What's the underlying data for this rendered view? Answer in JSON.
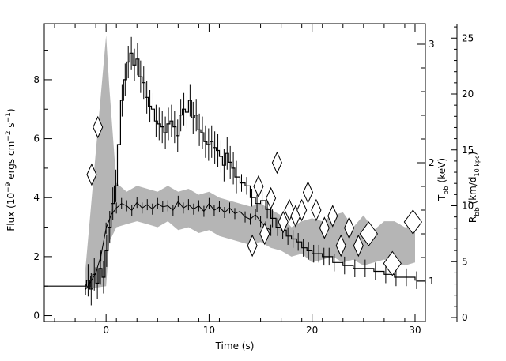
{
  "chart_data": {
    "type": "line",
    "title": "",
    "xlabel": "Time (s)",
    "ylabel_left": "Flux (10⁻⁹ ergs cm⁻² s⁻¹)",
    "ylabel_right_inner": "T_bb (keV)",
    "ylabel_right_outer": "R_bb (km/d_10 kpc)",
    "xlim": [
      -6,
      31
    ],
    "ylim_left": [
      -0.2,
      9.9
    ],
    "grid": false,
    "x_ticks": [
      0,
      10,
      20,
      30
    ],
    "left_ticks": [
      0,
      2,
      4,
      6,
      8
    ],
    "tbb_ticks": [
      1,
      2,
      3
    ],
    "rbb_ticks": [
      0,
      5,
      10,
      15,
      20,
      25
    ],
    "series": [
      {
        "kind": "step-with-errors",
        "x": [
          -6,
          -2.2,
          -1.9,
          -1.6,
          -1.3,
          -1.0,
          -0.7,
          -0.4,
          -0.1,
          0.2,
          0.5,
          0.8,
          1.1,
          1.4,
          1.7,
          2.0,
          2.3,
          2.6,
          2.9,
          3.2,
          3.5,
          3.8,
          4.1,
          4.4,
          4.7,
          5.0,
          5.3,
          5.6,
          5.9,
          6.2,
          6.5,
          6.8,
          7.1,
          7.4,
          7.7,
          8.0,
          8.3,
          8.6,
          8.9,
          9.2,
          9.5,
          9.8,
          10.1,
          10.4,
          10.7,
          11.0,
          11.3,
          11.6,
          11.9,
          12.2,
          12.5,
          13.0,
          13.5,
          14.0,
          14.5,
          15.0,
          15.5,
          16.0,
          16.5,
          17.0,
          17.5,
          18.0,
          18.5,
          19.0,
          19.5,
          20.0,
          20.5,
          21.0,
          21.5,
          22.0,
          23.0,
          24.0,
          25.0,
          26.0,
          27.0,
          28.0,
          29.0,
          30.0,
          31.0
        ],
        "y": [
          1.0,
          1.0,
          1.2,
          0.9,
          1.4,
          1.1,
          1.6,
          1.3,
          2.2,
          3.0,
          3.8,
          4.4,
          5.8,
          7.3,
          8.0,
          8.6,
          8.9,
          8.5,
          8.7,
          8.1,
          7.9,
          7.4,
          7.1,
          7.0,
          6.6,
          6.5,
          6.4,
          6.2,
          6.5,
          6.6,
          6.4,
          6.1,
          6.8,
          7.0,
          6.9,
          7.3,
          6.7,
          6.8,
          6.3,
          6.2,
          5.9,
          5.8,
          5.9,
          5.7,
          5.6,
          5.4,
          5.1,
          5.5,
          5.2,
          5.0,
          4.7,
          4.5,
          4.4,
          4.0,
          3.8,
          3.9,
          3.6,
          3.3,
          3.0,
          2.9,
          2.7,
          2.6,
          2.5,
          2.3,
          2.2,
          2.1,
          2.1,
          2.0,
          2.0,
          1.8,
          1.7,
          1.6,
          1.6,
          1.5,
          1.4,
          1.3,
          1.3,
          1.2,
          1.1
        ]
      }
    ],
    "tbb_series": {
      "marker": "diamond",
      "x": [
        -1.4,
        -0.8,
        14.2,
        14.8,
        15.4,
        16.0,
        16.6,
        17.2,
        17.8,
        18.4,
        19.0,
        19.6,
        20.4,
        21.2,
        22.0,
        22.8,
        23.6,
        24.5,
        25.5,
        27.8,
        29.8
      ],
      "y": [
        1.9,
        2.3,
        1.3,
        1.8,
        1.4,
        1.7,
        2.0,
        1.5,
        1.6,
        1.55,
        1.6,
        1.75,
        1.6,
        1.45,
        1.55,
        1.3,
        1.45,
        1.3,
        1.4,
        1.15,
        1.5
      ]
    },
    "rbb_series": {
      "marker": "zigzag",
      "x": [
        -2,
        -1.5,
        -1,
        -0.5,
        0,
        0.5,
        1,
        1.5,
        2,
        2.5,
        3,
        3.5,
        4,
        4.5,
        5,
        5.5,
        6,
        6.5,
        7,
        7.5,
        8,
        8.5,
        9,
        9.5,
        10,
        10.5,
        11,
        11.5,
        12,
        12.5,
        13,
        13.5,
        14,
        14.5,
        15,
        15.5,
        16
      ],
      "y": [
        2.5,
        3.2,
        4.0,
        5.5,
        8.0,
        9.2,
        9.8,
        10.2,
        10.0,
        9.6,
        10.3,
        9.8,
        10.1,
        9.7,
        10.2,
        9.9,
        10.0,
        9.6,
        10.4,
        9.8,
        10.1,
        9.7,
        10.0,
        9.5,
        10.2,
        9.6,
        9.9,
        9.4,
        9.8,
        9.3,
        9.5,
        9.0,
        8.8,
        9.2,
        8.6,
        8.1,
        7.8
      ]
    },
    "shaded_band": {
      "x": [
        -2,
        0,
        0.3,
        1,
        2,
        3,
        4,
        5,
        6,
        7,
        8,
        9,
        10,
        11,
        12,
        13,
        14,
        15,
        16,
        17,
        18,
        19,
        20,
        21,
        22,
        23,
        24,
        25,
        26,
        27,
        28,
        29,
        30
      ],
      "upper": [
        1.6,
        9.5,
        7.8,
        4.5,
        4.2,
        4.4,
        4.3,
        4.2,
        4.4,
        4.2,
        4.3,
        4.1,
        4.2,
        4.0,
        3.9,
        3.8,
        3.7,
        3.8,
        3.6,
        3.4,
        3.0,
        3.2,
        3.3,
        3.2,
        3.4,
        3.5,
        3.0,
        3.4,
        2.9,
        3.2,
        3.2,
        3.0,
        3.0
      ],
      "lower": [
        0.9,
        1.0,
        2.5,
        3.0,
        3.1,
        3.2,
        3.1,
        3.0,
        3.2,
        2.9,
        3.0,
        2.8,
        2.9,
        2.7,
        2.6,
        2.5,
        2.4,
        2.5,
        2.3,
        2.2,
        2.0,
        2.1,
        1.8,
        1.9,
        2.0,
        1.8,
        1.9,
        1.7,
        1.8,
        1.9,
        1.8,
        1.7,
        1.8
      ]
    }
  }
}
